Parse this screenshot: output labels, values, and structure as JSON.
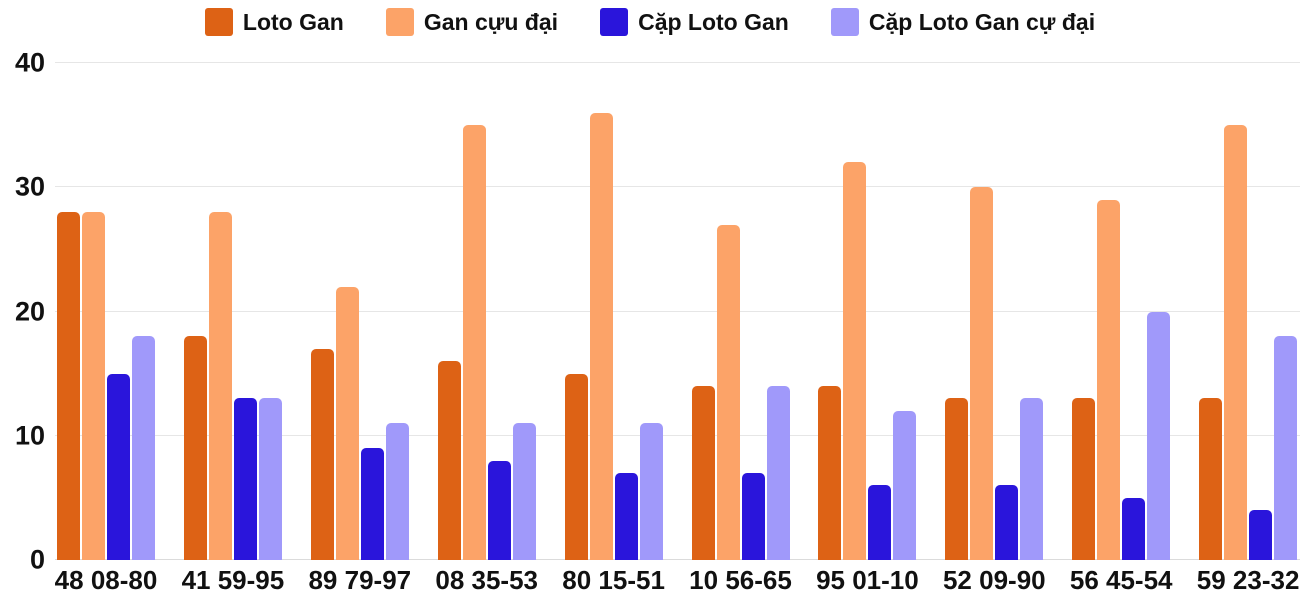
{
  "chart_data": {
    "type": "bar",
    "title": "",
    "categories": [
      "48 08-80",
      "41 59-95",
      "89 79-97",
      "08 35-53",
      "80 15-51",
      "10 56-65",
      "95 01-10",
      "52 09-90",
      "56 45-54",
      "59 23-32"
    ],
    "series": [
      {
        "name": "Loto Gan",
        "color": "#DD6215",
        "values": [
          28,
          18,
          17,
          16,
          15,
          14,
          14,
          13,
          13,
          13
        ]
      },
      {
        "name": "Gan cựu đại",
        "color": "#FCA368",
        "values": [
          28,
          28,
          22,
          35,
          36,
          27,
          32,
          30,
          29,
          35
        ]
      },
      {
        "name": "Cặp Loto Gan",
        "color": "#2A15DB",
        "values": [
          15,
          13,
          9,
          8,
          7,
          7,
          6,
          6,
          5,
          4
        ]
      },
      {
        "name": "Cặp Loto Gan cự đại",
        "color": "#A099FA",
        "values": [
          18,
          13,
          11,
          11,
          11,
          14,
          12,
          13,
          20,
          18
        ]
      }
    ],
    "ylim": [
      0,
      40
    ],
    "yticks": [
      0,
      10,
      20,
      30,
      40
    ],
    "grid": true,
    "legend_position": "top"
  },
  "palette": {
    "gridline": "#E6E6E6",
    "baseline": "#DBDBDB",
    "axis_text": "#111111",
    "background": "#FFFFFF"
  }
}
